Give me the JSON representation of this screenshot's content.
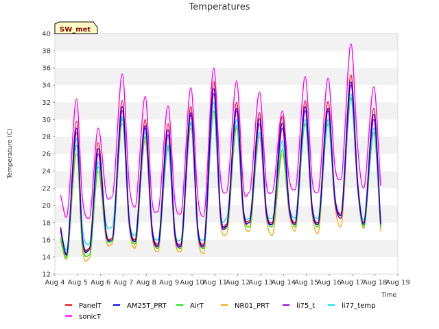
{
  "chart_data": {
    "type": "line",
    "title": "Temperatures",
    "xlabel": "Time",
    "ylabel": "Temperature (C)",
    "tag": "SW_met",
    "ylim": [
      12,
      40
    ],
    "yticks": [
      12,
      14,
      16,
      18,
      20,
      22,
      24,
      26,
      28,
      30,
      32,
      34,
      36,
      38,
      40
    ],
    "xlim": [
      "Aug 4",
      "Aug 19"
    ],
    "xticks": [
      "Aug 4",
      "Aug 5",
      "Aug 6",
      "Aug 7",
      "Aug 8",
      "Aug 9",
      "Aug 10",
      "Aug 11",
      "Aug 12",
      "Aug 13",
      "Aug 14",
      "Aug 15",
      "Aug 16",
      "Aug 17",
      "Aug 18",
      "Aug 19"
    ],
    "grid": "horizontal bands",
    "legend_position": "bottom",
    "x_days": [
      4.25,
      4.5,
      4.95,
      5.2,
      5.5,
      5.9,
      6.25,
      6.5,
      6.95,
      7.25,
      7.5,
      7.95,
      8.25,
      8.5,
      8.95,
      9.25,
      9.5,
      9.95,
      10.25,
      10.5,
      10.95,
      11.25,
      11.5,
      11.95,
      12.25,
      12.5,
      12.95,
      13.25,
      13.5,
      13.95,
      14.25,
      14.5,
      14.95,
      15.25,
      15.5,
      15.95,
      16.25,
      16.5,
      16.95,
      17.25,
      17.5,
      17.95,
      18.25
    ],
    "series": [
      {
        "name": "PanelT",
        "color": "#ff0000",
        "values": [
          17.5,
          14.3,
          29.8,
          16.5,
          15.0,
          27.3,
          16.8,
          16.2,
          32.2,
          18.5,
          16.0,
          30.0,
          17.5,
          15.5,
          29.5,
          17.0,
          15.5,
          31.5,
          17.5,
          15.5,
          34.4,
          19.0,
          17.8,
          32.0,
          19.5,
          18.2,
          30.8,
          19.5,
          18.0,
          30.4,
          20.0,
          18.0,
          32.2,
          20.0,
          18.0,
          32.1,
          21.0,
          19.0,
          35.2,
          22.5,
          18.0,
          31.3,
          18.0
        ]
      },
      {
        "name": "AM25T_PRT",
        "color": "#0000ff",
        "values": [
          17.3,
          14.2,
          29.0,
          16.3,
          14.8,
          26.6,
          16.6,
          16.0,
          31.5,
          18.3,
          15.8,
          29.3,
          17.3,
          15.3,
          28.8,
          16.8,
          15.3,
          30.8,
          17.3,
          15.3,
          33.6,
          18.8,
          17.6,
          31.3,
          19.3,
          18.0,
          30.1,
          19.3,
          17.8,
          29.6,
          19.8,
          17.8,
          31.5,
          19.8,
          17.8,
          31.3,
          20.8,
          18.8,
          34.4,
          22.3,
          17.8,
          30.6,
          17.8
        ]
      },
      {
        "name": "AirT",
        "color": "#00ee00",
        "values": [
          16.3,
          13.9,
          27.0,
          15.8,
          14.2,
          24.5,
          16.3,
          15.8,
          30.0,
          18.0,
          15.5,
          28.0,
          17.0,
          15.0,
          26.8,
          16.5,
          15.0,
          29.5,
          17.0,
          15.0,
          31.0,
          18.5,
          17.3,
          29.3,
          19.0,
          17.5,
          28.5,
          19.0,
          17.5,
          26.5,
          19.5,
          17.5,
          29.5,
          19.5,
          17.5,
          29.5,
          20.5,
          18.5,
          32.5,
          22.0,
          17.5,
          28.5,
          17.5
        ]
      },
      {
        "name": "NR01_PRT",
        "color": "#ffa500",
        "values": [
          15.9,
          13.7,
          26.0,
          15.0,
          13.8,
          24.0,
          15.8,
          15.5,
          29.5,
          17.5,
          15.0,
          27.5,
          16.5,
          14.6,
          26.5,
          16.0,
          14.6,
          29.0,
          16.5,
          14.4,
          31.0,
          18.0,
          16.6,
          29.0,
          18.5,
          17.0,
          28.0,
          18.5,
          16.5,
          26.0,
          19.0,
          17.0,
          29.5,
          19.0,
          16.7,
          30.0,
          20.0,
          17.5,
          32.5,
          21.5,
          17.3,
          28.5,
          17.0
        ]
      },
      {
        "name": "li75_t",
        "color": "#9400d3",
        "values": [
          17.0,
          14.4,
          28.5,
          16.5,
          15.0,
          26.0,
          16.5,
          16.2,
          31.0,
          18.0,
          15.8,
          29.0,
          17.0,
          15.2,
          28.2,
          16.5,
          15.2,
          30.5,
          17.0,
          15.2,
          33.0,
          18.5,
          17.5,
          31.0,
          19.0,
          18.0,
          29.5,
          19.0,
          17.8,
          29.0,
          19.5,
          17.8,
          31.0,
          19.5,
          17.8,
          31.0,
          20.5,
          18.5,
          34.0,
          22.0,
          17.8,
          30.0,
          17.8
        ]
      },
      {
        "name": "li77_temp",
        "color": "#00e5ee",
        "values": [
          17.0,
          14.8,
          27.8,
          17.5,
          15.5,
          25.0,
          17.8,
          17.5,
          30.3,
          18.5,
          16.5,
          28.5,
          17.5,
          16.0,
          27.0,
          17.0,
          16.0,
          29.7,
          17.5,
          16.0,
          32.0,
          19.0,
          18.5,
          30.0,
          19.5,
          18.5,
          28.5,
          19.5,
          18.5,
          27.5,
          20.0,
          18.5,
          30.0,
          20.0,
          18.5,
          30.0,
          21.0,
          19.0,
          33.0,
          22.5,
          18.3,
          29.0,
          18.0
        ]
      },
      {
        "name": "sonicT",
        "color": "#ff00ff",
        "values": [
          21.2,
          18.6,
          32.4,
          21.0,
          18.5,
          29.0,
          21.2,
          21.0,
          35.3,
          22.5,
          19.8,
          32.7,
          20.5,
          19.3,
          31.6,
          20.5,
          19.0,
          33.7,
          21.0,
          18.7,
          36.0,
          23.0,
          21.5,
          34.5,
          22.0,
          21.5,
          33.2,
          22.5,
          21.5,
          31.0,
          23.0,
          21.8,
          35.0,
          23.0,
          21.5,
          34.8,
          24.5,
          23.0,
          38.8,
          26.5,
          22.0,
          33.8,
          22.3
        ]
      }
    ]
  }
}
